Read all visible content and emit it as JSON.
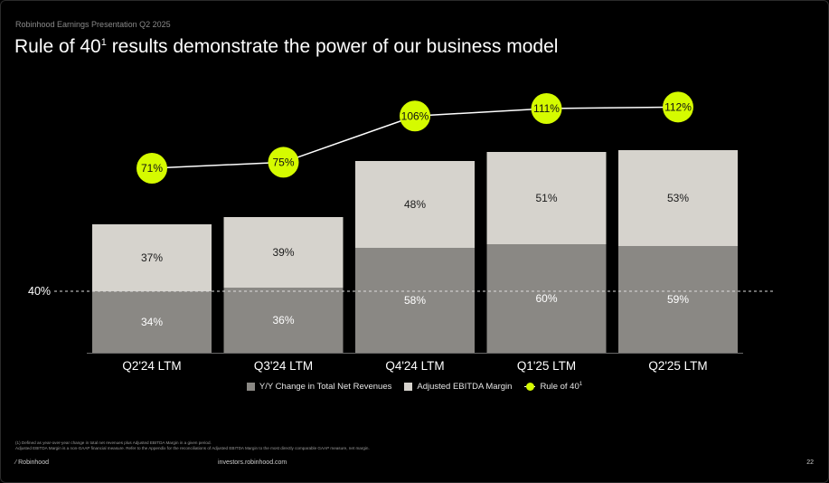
{
  "header": {
    "eyebrow": "Robinhood Earnings Presentation Q2 2025",
    "title": "Rule of 40",
    "title_sup": "1",
    "title_rest": " results demonstrate the power of our business model"
  },
  "colors": {
    "background": "#000000",
    "revenue_growth": "#8a8884",
    "ebitda_margin": "#d6d3cd",
    "rule_of_40": "#d5fb00",
    "line": "#ffffff"
  },
  "chart_data": {
    "type": "bar",
    "stacked": true,
    "categories": [
      "Q2'24 LTM",
      "Q3'24 LTM",
      "Q4'24 LTM",
      "Q1'25 LTM",
      "Q2'25 LTM"
    ],
    "series": [
      {
        "name": "Y/Y Change in Total Net Revenues",
        "values": [
          34,
          36,
          58,
          60,
          59
        ],
        "labels": [
          "34%",
          "36%",
          "58%",
          "60%",
          "59%"
        ],
        "color": "#8a8884"
      },
      {
        "name": "Adjusted EBITDA Margin",
        "values": [
          37,
          39,
          48,
          51,
          53
        ],
        "labels": [
          "37%",
          "39%",
          "48%",
          "51%",
          "53%"
        ],
        "color": "#d6d3cd"
      }
    ],
    "line_series": {
      "name": "Rule of 40",
      "values": [
        71,
        75,
        106,
        111,
        112
      ],
      "labels": [
        "71%",
        "75%",
        "106%",
        "111%",
        "112%"
      ],
      "color": "#d5fb00"
    },
    "reference_line": {
      "value": 40,
      "label": "40%"
    },
    "legend": {
      "position": "bottom",
      "items": [
        {
          "label": "Y/Y Change in Total Net Revenues",
          "kind": "square",
          "color": "#8a8884"
        },
        {
          "label": "Adjusted EBITDA Margin",
          "kind": "square",
          "color": "#d6d3cd"
        },
        {
          "label": "Rule of 40",
          "sup": "1",
          "kind": "line-dot",
          "color": "#d5fb00"
        }
      ]
    }
  },
  "footer": {
    "footnote_1": "(1) Defined as year-over-year change in total net revenues plus Adjusted EBITDA Margin in a given period.",
    "footnote_2": "Adjusted EBITDA Margin is a non-GAAP financial measure. Refer to the Appendix for the reconciliations of Adjusted EBITDA Margin to the most directly comparable GAAP measure, net margin.",
    "logo_text": "Robinhood",
    "url": "investors.robinhood.com",
    "page": "22"
  }
}
